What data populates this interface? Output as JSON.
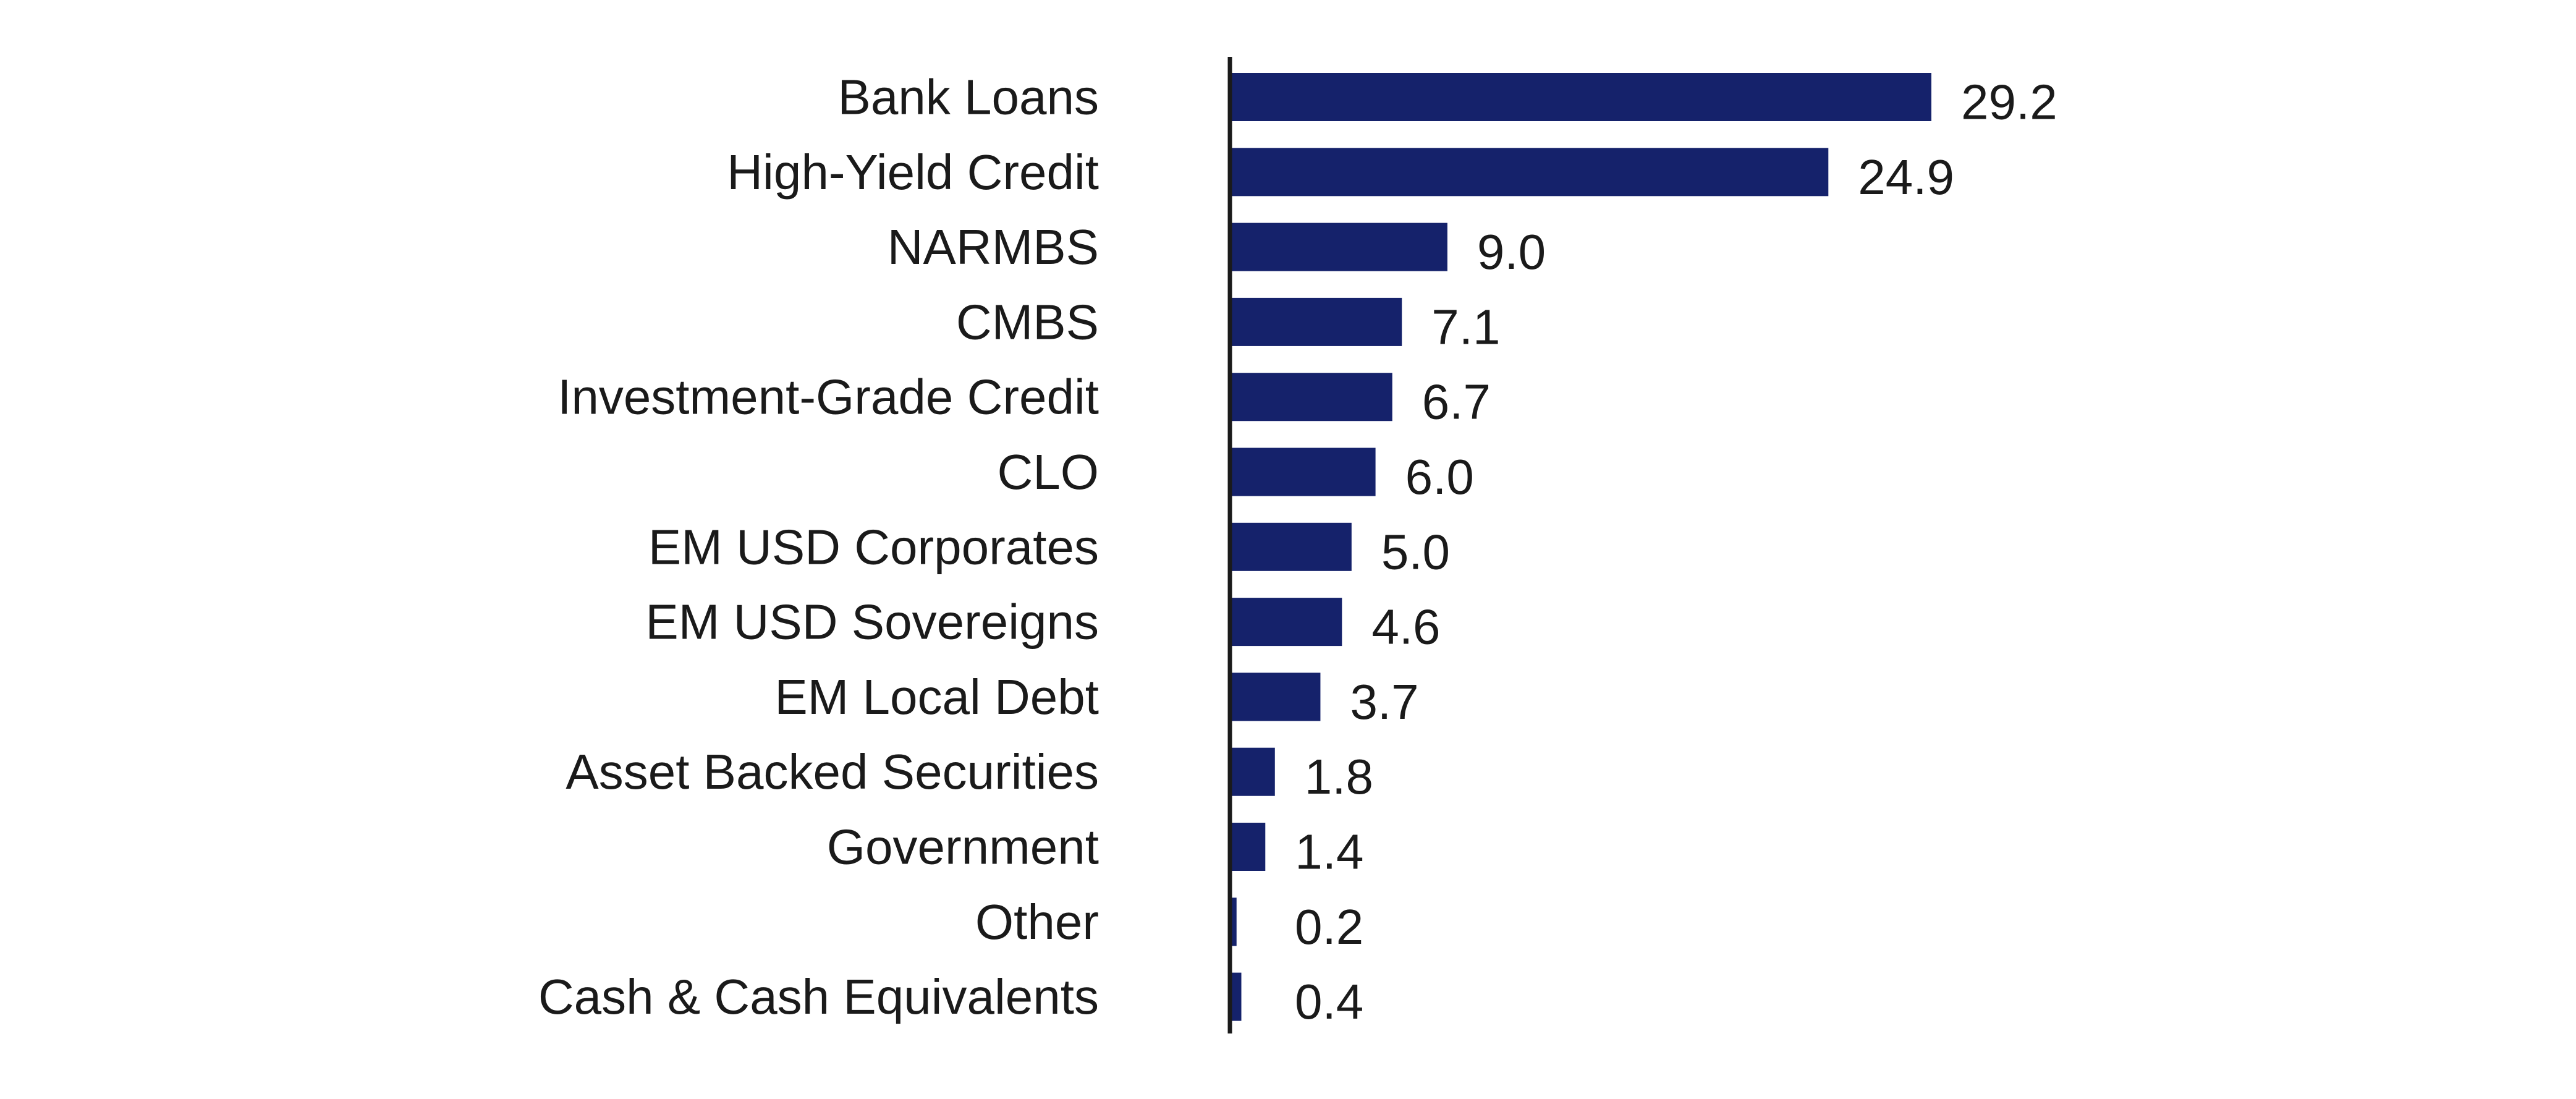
{
  "chart_data": {
    "type": "bar",
    "orientation": "horizontal",
    "categories": [
      "Bank Loans",
      "High-Yield Credit",
      "NARMBS",
      "CMBS",
      "Investment-Grade Credit",
      "CLO",
      "EM USD Corporates",
      "EM USD Sovereigns",
      "EM Local Debt",
      "Asset Backed Securities",
      "Government",
      "Other",
      "Cash & Cash Equivalents"
    ],
    "values": [
      29.2,
      24.9,
      9.0,
      7.1,
      6.7,
      6.0,
      5.0,
      4.6,
      3.7,
      1.8,
      1.4,
      0.2,
      0.4
    ],
    "value_labels": [
      "29.2",
      "24.9",
      "9.0",
      "7.1",
      "6.7",
      "6.0",
      "5.0",
      "4.6",
      "3.7",
      "1.8",
      "1.4",
      "0.2",
      "0.4"
    ],
    "title": "",
    "xlabel": "",
    "ylabel": "",
    "xlim": [
      0,
      29.2
    ],
    "grid": false,
    "legend": "none",
    "bar_color": "#15226b",
    "axis_color": "#1a1a1a"
  }
}
